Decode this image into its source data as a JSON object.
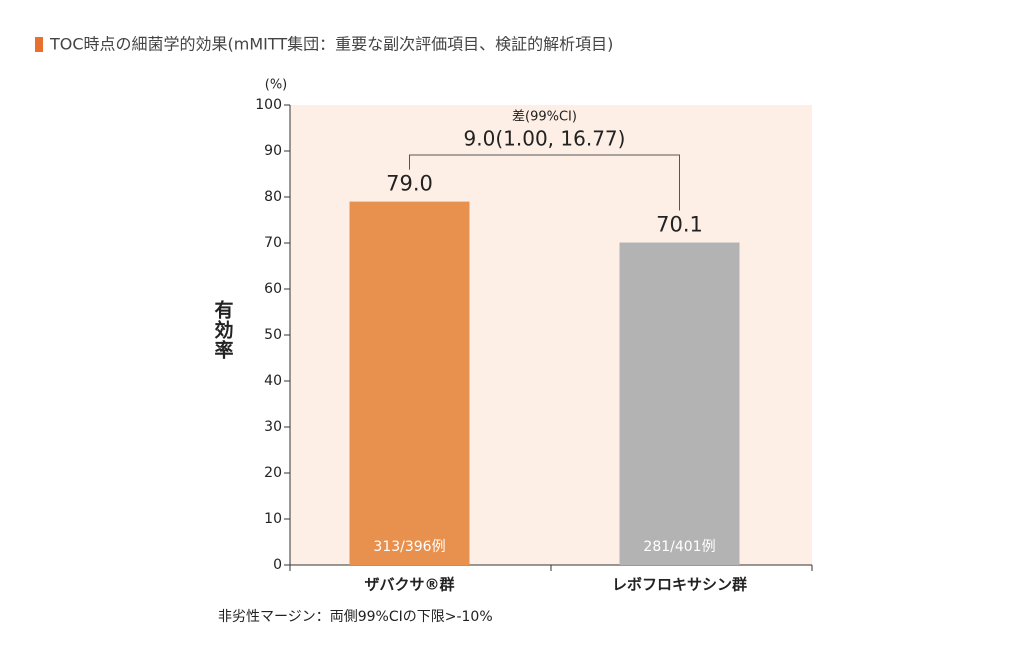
{
  "chart_data": {
    "type": "bar",
    "title": "TOC時点の細菌学的効果(mMITT集団：重要な副次評価項目、検証的解析項目)",
    "y_unit": "(%)",
    "y_label": "有効率",
    "categories": [
      "ザバクサ®群",
      "レボフロキサシン群"
    ],
    "values": [
      79.0,
      70.1
    ],
    "value_labels": [
      "79.0",
      "70.1"
    ],
    "bar_notes": [
      "313/396例",
      "281/401例"
    ],
    "colors": [
      "#e8914e",
      "#b3b3b3"
    ],
    "difference_label": "差(99%CI)",
    "difference_value": "9.0(1.00, 16.77)",
    "footnote": "非劣性マージン：両側99%CIの下限>-10%",
    "ylim": [
      0,
      100
    ],
    "yticks": [
      0,
      10,
      20,
      30,
      40,
      50,
      60,
      70,
      80,
      90,
      100
    ],
    "plot_background": "#fdefe5"
  }
}
